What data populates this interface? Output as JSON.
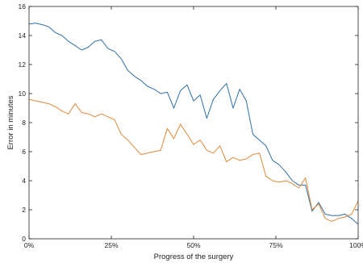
{
  "chart_data": {
    "type": "line",
    "title": "",
    "xlabel": "Progress of the surgery",
    "ylabel": "Error in minutes",
    "xlim": [
      0,
      100
    ],
    "ylim": [
      0,
      16
    ],
    "x_ticks": [
      {
        "value": 0,
        "label": "0%"
      },
      {
        "value": 25,
        "label": "25%"
      },
      {
        "value": 50,
        "label": "50%"
      },
      {
        "value": 75,
        "label": "75%"
      },
      {
        "value": 100,
        "label": "100%"
      }
    ],
    "y_ticks": [
      0,
      2,
      4,
      6,
      8,
      10,
      12,
      14,
      16
    ],
    "grid": false,
    "legend": "none",
    "x_unit": "percent of surgery progress",
    "series": [
      {
        "color": "#2e6ea6",
        "x": [
          0,
          2,
          4,
          6,
          8,
          10,
          12,
          14,
          16,
          18,
          20,
          22,
          24,
          26,
          28,
          30,
          32,
          34,
          36,
          38,
          40,
          42,
          44,
          46,
          48,
          50,
          52,
          54,
          56,
          58,
          60,
          62,
          64,
          66,
          68,
          70,
          72,
          74,
          76,
          78,
          80,
          82,
          84,
          86,
          88,
          90,
          92,
          94,
          96,
          98,
          100
        ],
        "y": [
          14.8,
          14.85,
          14.75,
          14.6,
          14.2,
          14.0,
          13.6,
          13.3,
          13.0,
          13.2,
          13.6,
          13.7,
          13.1,
          12.9,
          12.4,
          11.6,
          11.2,
          10.9,
          10.5,
          10.3,
          10.0,
          10.1,
          9.0,
          10.2,
          10.6,
          9.5,
          9.9,
          8.3,
          9.6,
          10.2,
          10.7,
          9.0,
          10.3,
          9.5,
          7.2,
          6.8,
          6.4,
          5.4,
          5.1,
          4.6,
          4.0,
          3.7,
          3.7,
          1.9,
          2.5,
          1.7,
          1.6,
          1.6,
          1.7,
          1.4,
          1.0
        ]
      },
      {
        "color": "#e0883a",
        "x": [
          0,
          2,
          4,
          6,
          8,
          10,
          12,
          14,
          16,
          18,
          20,
          22,
          24,
          26,
          28,
          30,
          32,
          34,
          36,
          38,
          40,
          42,
          44,
          46,
          48,
          50,
          52,
          54,
          56,
          58,
          60,
          62,
          64,
          66,
          68,
          70,
          72,
          74,
          76,
          78,
          80,
          82,
          84,
          86,
          88,
          90,
          92,
          94,
          96,
          98,
          100
        ],
        "y": [
          9.6,
          9.5,
          9.4,
          9.3,
          9.1,
          8.8,
          8.6,
          9.3,
          8.7,
          8.6,
          8.4,
          8.6,
          8.4,
          8.2,
          7.2,
          6.8,
          6.3,
          5.8,
          5.9,
          6.0,
          6.1,
          7.6,
          6.9,
          7.9,
          7.2,
          6.5,
          6.8,
          6.1,
          5.9,
          6.4,
          5.3,
          5.6,
          5.4,
          5.5,
          5.8,
          5.9,
          4.3,
          4.0,
          3.9,
          4.0,
          3.8,
          3.5,
          4.2,
          2.0,
          2.4,
          1.4,
          1.2,
          1.4,
          1.5,
          1.7,
          2.6
        ]
      }
    ]
  }
}
